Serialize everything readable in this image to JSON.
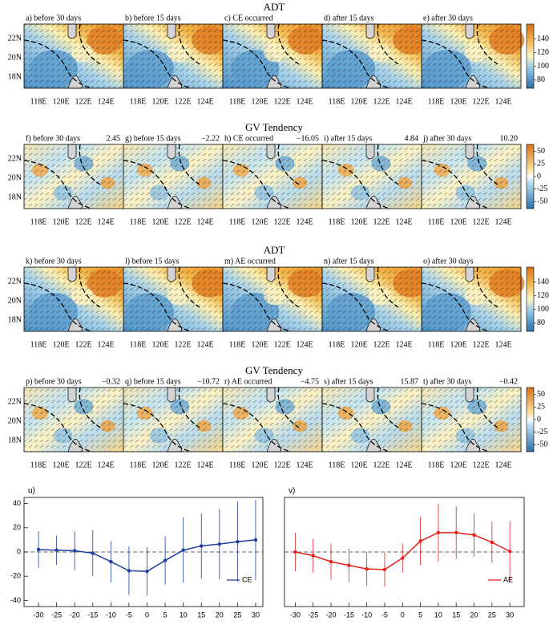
{
  "maps": {
    "y_labels": [
      "22N",
      "20N",
      "18N"
    ],
    "x_labels": [
      "118E",
      "120E",
      "122E",
      "124E"
    ],
    "rows": [
      {
        "title": "ADT",
        "kind": "adt",
        "lim": [
          68,
          162
        ],
        "ticks": [
          80,
          100,
          120,
          140
        ],
        "panels": [
          {
            "label": "a) before 30 days"
          },
          {
            "label": "b) before 15 days"
          },
          {
            "label": "c) CE occurred"
          },
          {
            "label": "d) after 15 days"
          },
          {
            "label": "e) after 30 days"
          }
        ]
      },
      {
        "title": "GV Tendency",
        "kind": "gv",
        "lim": [
          -64,
          64
        ],
        "ticks": [
          50,
          25,
          0,
          -25,
          -50
        ],
        "panels": [
          {
            "label": "f) before 30 days",
            "value": "2.45"
          },
          {
            "label": "g) before 15 days",
            "value": "−2.22"
          },
          {
            "label": "h) CE occurred",
            "value": "−16.05"
          },
          {
            "label": "i) after 15 days",
            "value": "4.84"
          },
          {
            "label": "j) after 30 days",
            "value": "10.20"
          }
        ]
      },
      {
        "title": "ADT",
        "kind": "adt",
        "lim": [
          68,
          162
        ],
        "ticks": [
          140,
          120,
          100,
          80
        ],
        "panels": [
          {
            "label": "k) before 30 days"
          },
          {
            "label": "l) before 15 days"
          },
          {
            "label": "m) AE occurred"
          },
          {
            "label": "n) after 15 days"
          },
          {
            "label": "o) after 30 days"
          }
        ]
      },
      {
        "title": "GV Tendency",
        "kind": "gv",
        "lim": [
          -64,
          64
        ],
        "ticks": [
          50,
          25,
          0,
          -25,
          -50
        ],
        "panels": [
          {
            "label": "p) before 30 days",
            "value": "−0.32"
          },
          {
            "label": "q) before 15 days",
            "value": "−10.72"
          },
          {
            "label": "r) AE occurred",
            "value": "−4.75"
          },
          {
            "label": "s) after 15 days",
            "value": "15.87"
          },
          {
            "label": "t) after 30 days",
            "value": "−0.42"
          }
        ]
      }
    ]
  },
  "chart_data": [
    {
      "type": "line",
      "label": "u)",
      "x": [
        -30,
        -25,
        -20,
        -15,
        -10,
        -5,
        0,
        5,
        10,
        15,
        20,
        25,
        30
      ],
      "series": [
        {
          "name": "CE",
          "color": "#1f3fa0",
          "values": [
            2,
            1.5,
            1,
            -1,
            -8,
            -15.5,
            -16,
            -7,
            1.5,
            5,
            6.5,
            8.5,
            10
          ],
          "errors": [
            15,
            12,
            16,
            19,
            17,
            20,
            20,
            20,
            27,
            27,
            29,
            33,
            33
          ]
        }
      ],
      "xlim": [
        -34,
        32
      ],
      "ylim": [
        -45,
        45
      ],
      "xticks": [
        -30,
        -25,
        -20,
        -15,
        -10,
        -5,
        0,
        5,
        10,
        15,
        20,
        25,
        30
      ],
      "yticks": [
        40,
        20,
        0,
        -20,
        -40
      ],
      "legend": "lower right"
    },
    {
      "type": "line",
      "label": "v)",
      "x": [
        -30,
        -25,
        -20,
        -15,
        -10,
        -5,
        0,
        5,
        10,
        15,
        20,
        25,
        30
      ],
      "series": [
        {
          "name": "AE",
          "color": "#e8201c",
          "values": [
            0,
            -3,
            -8,
            -11,
            -14,
            -14.5,
            -5,
            9,
            16,
            16,
            14,
            8,
            0.5
          ],
          "errors": [
            16,
            14,
            15,
            14,
            14,
            14,
            12,
            20,
            24,
            22,
            18,
            17,
            25
          ]
        }
      ],
      "xlim": [
        -33,
        34
      ],
      "ylim": [
        -45,
        45
      ],
      "xticks": [
        -30,
        -25,
        -20,
        -15,
        -10,
        -5,
        0,
        5,
        10,
        15,
        20,
        25,
        30
      ],
      "legend": "lower right"
    }
  ]
}
